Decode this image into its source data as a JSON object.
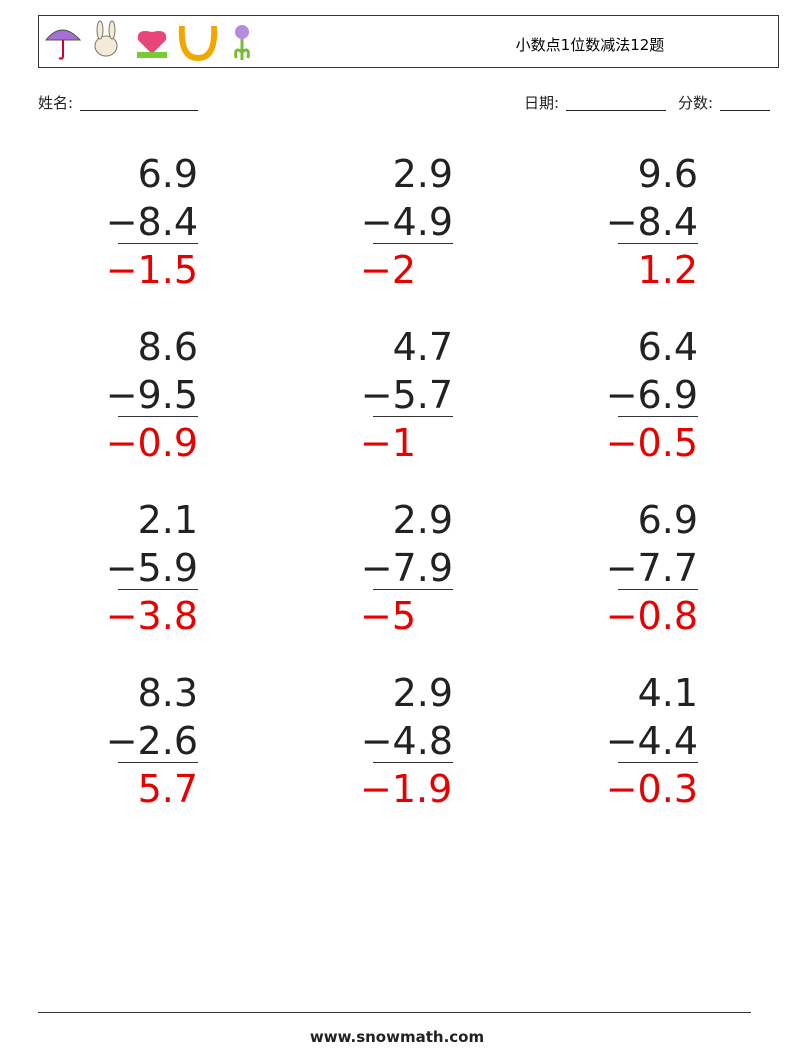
{
  "header": {
    "title": "小数点1位数减法12题"
  },
  "fields": {
    "name": "姓名:",
    "date": "日期:",
    "score": "分数:"
  },
  "problems": [
    {
      "a": "6.9",
      "b": "−8.4",
      "answer": "−1.5"
    },
    {
      "a": "2.9",
      "b": "−4.9",
      "answer": "−2"
    },
    {
      "a": "9.6",
      "b": "−8.4",
      "answer": "1.2"
    },
    {
      "a": "8.6",
      "b": "−9.5",
      "answer": "−0.9"
    },
    {
      "a": "4.7",
      "b": "−5.7",
      "answer": "−1"
    },
    {
      "a": "6.4",
      "b": "−6.9",
      "answer": "−0.5"
    },
    {
      "a": "2.1",
      "b": "−5.9",
      "answer": "−3.8"
    },
    {
      "a": "2.9",
      "b": "−7.9",
      "answer": "−5"
    },
    {
      "a": "6.9",
      "b": "−7.7",
      "answer": "−0.8"
    },
    {
      "a": "8.3",
      "b": "−2.6",
      "answer": "5.7"
    },
    {
      "a": "2.9",
      "b": "−4.8",
      "answer": "−1.9"
    },
    {
      "a": "4.1",
      "b": "−4.4",
      "answer": "−0.3"
    }
  ],
  "footer": {
    "site": "www.snowmath.com"
  }
}
